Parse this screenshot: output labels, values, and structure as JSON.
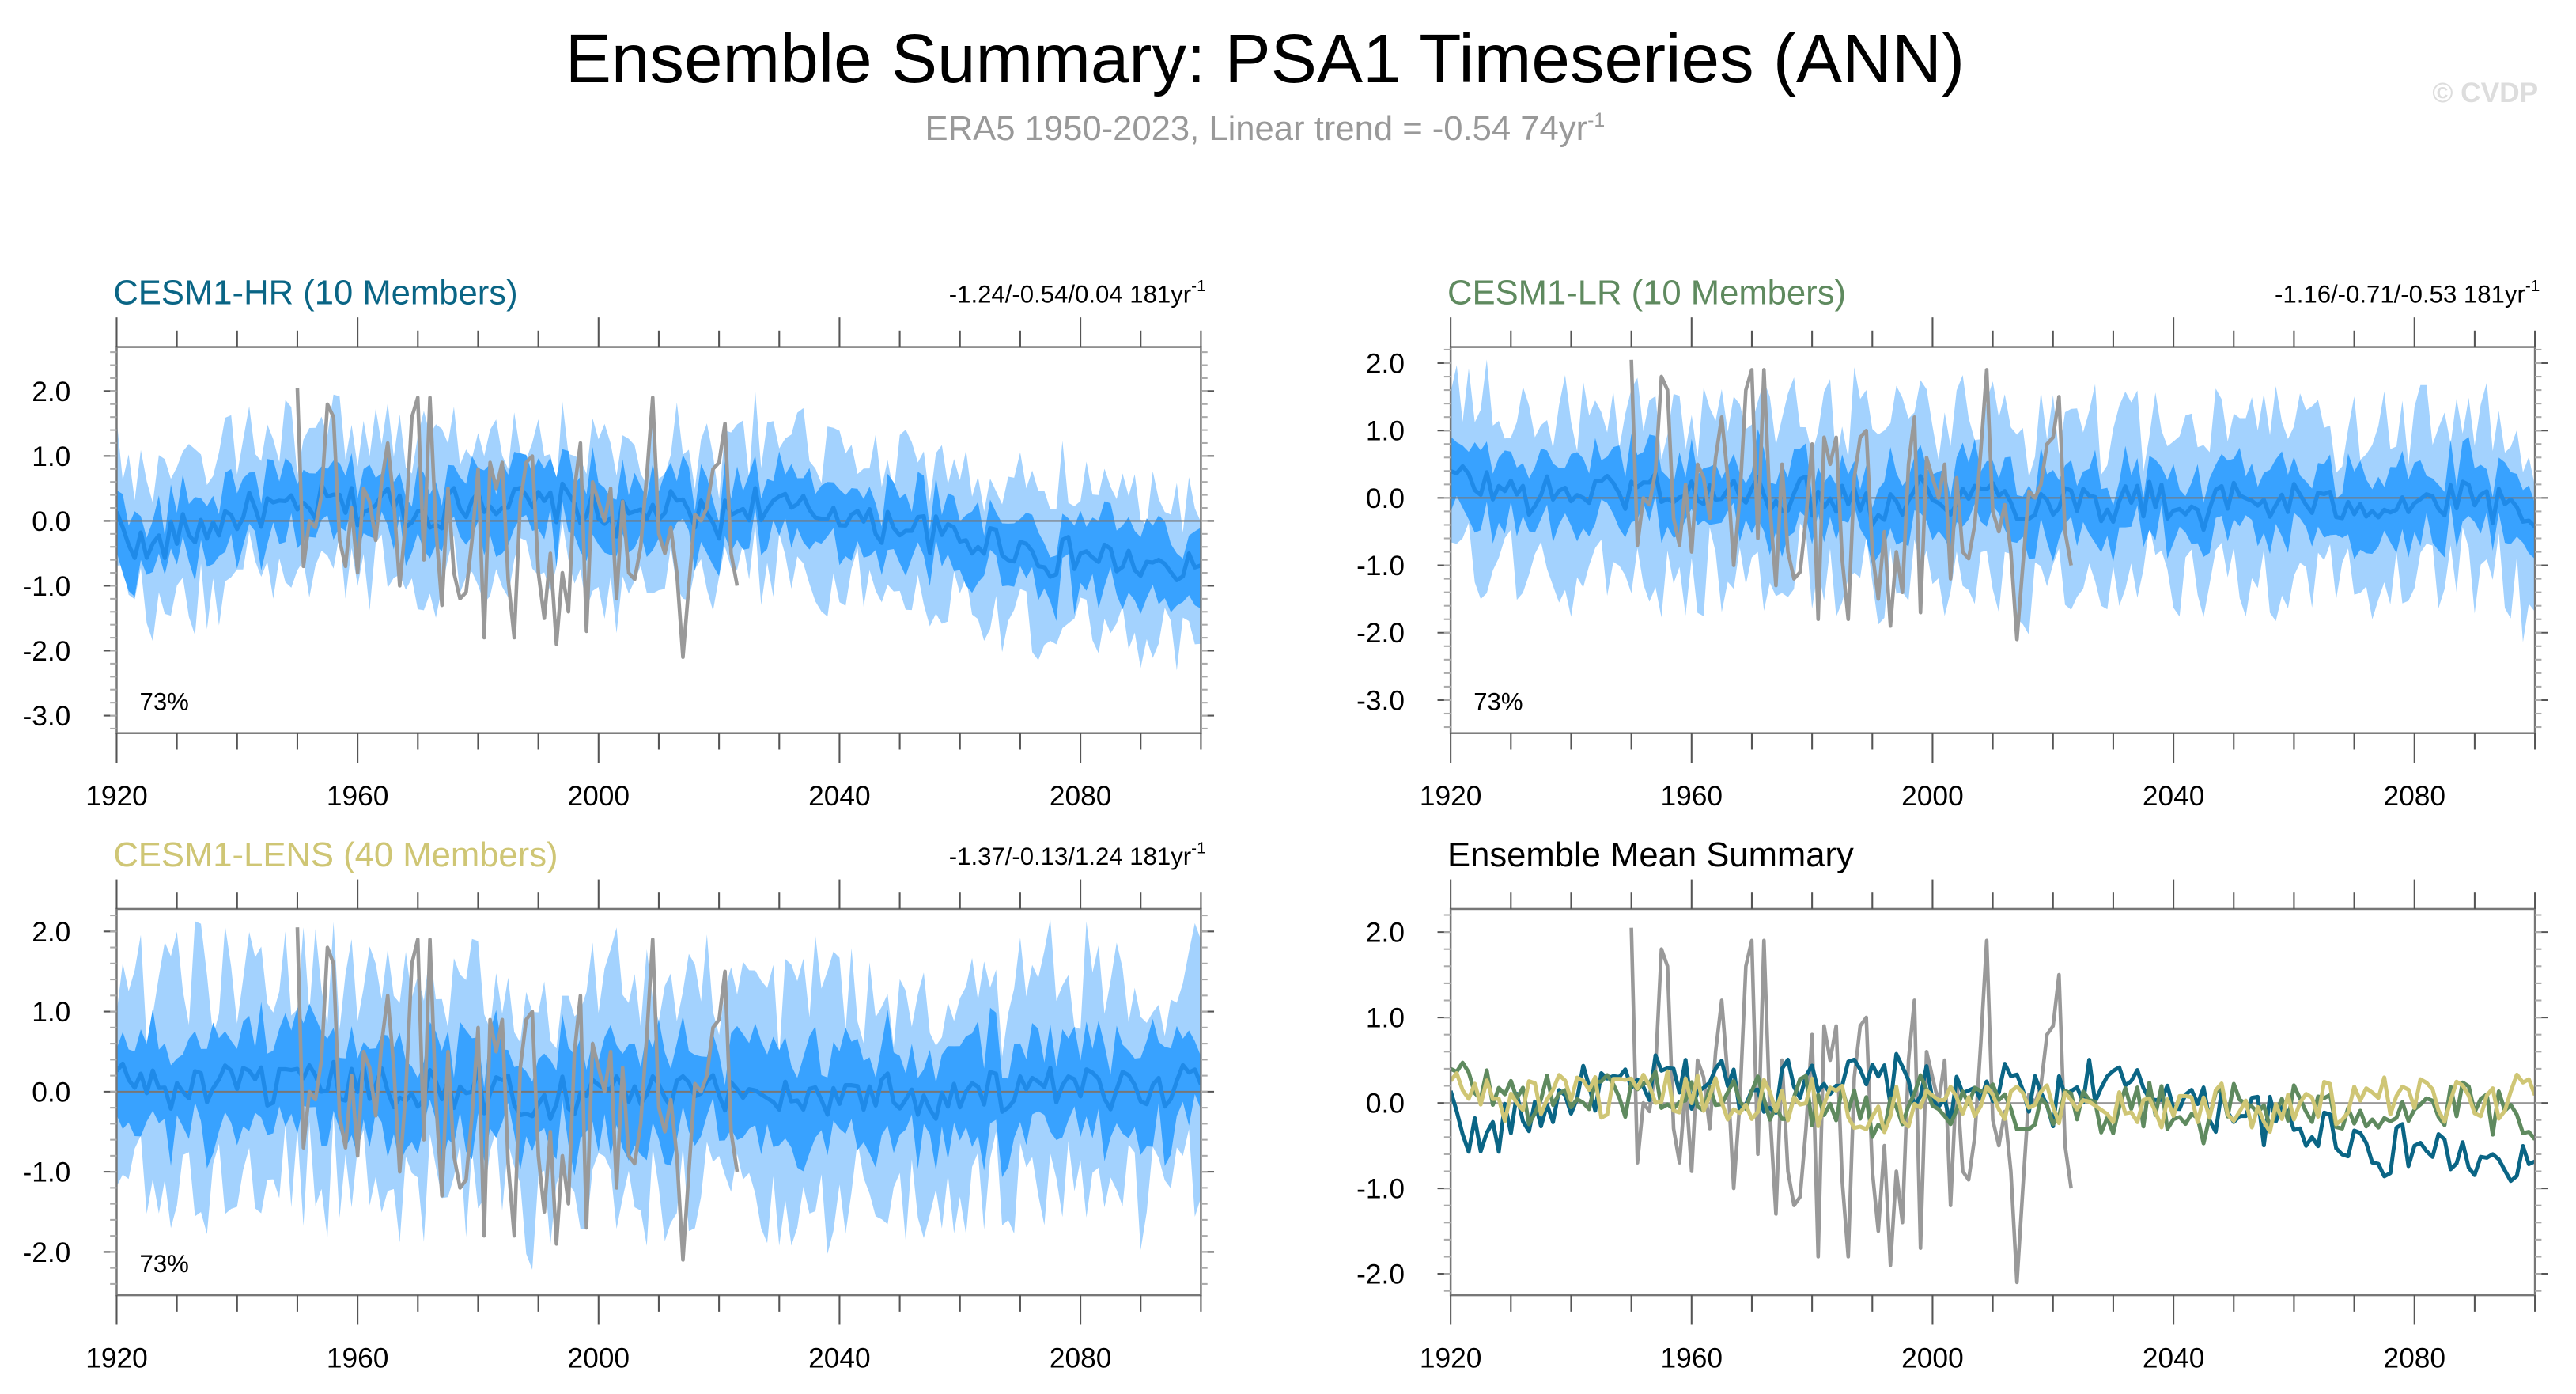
{
  "header": {
    "title": "Ensemble Summary: PSA1 Timeseries (ANN)",
    "subtitle": "ERA5 1950-2023, Linear trend = -0.54 74yr",
    "subtitle_sup": "-1",
    "watermark": "© CVDP"
  },
  "colors": {
    "hr": "#0a6585",
    "lr": "#5f8a5f",
    "lens": "#cfc675",
    "outer_band": "#a3d2fe",
    "inner_band": "#38a2ff",
    "mean_line": "#1f8ae8",
    "obs": "#999999"
  },
  "chart_data": [
    {
      "type": "area",
      "id": "hr",
      "title": "CESM1-HR (10 Members)",
      "trend": "-1.24/-0.54/0.04 181yr",
      "trend_sup": "-1",
      "percent_label": "73%",
      "x_start": 1920,
      "x_step": 5,
      "xlim": [
        1920,
        2100
      ],
      "xticks": [
        "1920",
        "1960",
        "2000",
        "2040",
        "2080"
      ],
      "ylim": [
        -3.27,
        2.68
      ],
      "yticks": [
        "2.0",
        "1.0",
        "0.0",
        "-1.0",
        "-2.0",
        "-3.0"
      ],
      "mean": [
        0.0,
        -0.5,
        -0.2,
        -0.1,
        0.1,
        0.2,
        0.1,
        0.3,
        0.2,
        0.3,
        0.1,
        0.2,
        0.4,
        0.3,
        0.2,
        0.3,
        0.1,
        0.0,
        0.2,
        0.1,
        0.0,
        0.3,
        0.2,
        0.1,
        0.2,
        -0.1,
        0.0,
        -0.2,
        -0.3,
        -0.3,
        -0.4,
        -0.6,
        -0.5,
        -0.6,
        -0.7,
        -0.8,
        -0.8
      ],
      "inner_spread": 0.6,
      "outer_spread": 1.3
    },
    {
      "type": "area",
      "id": "lr",
      "title": "CESM1-LR (10 Members)",
      "trend": "-1.16/-0.71/-0.53 181yr",
      "trend_sup": "-1",
      "percent_label": "73%",
      "x_start": 1920,
      "x_step": 5,
      "xlim": [
        1920,
        2100
      ],
      "xticks": [
        "1920",
        "1960",
        "2000",
        "2040",
        "2080"
      ],
      "ylim": [
        -3.49,
        2.24
      ],
      "yticks": [
        "2.0",
        "1.0",
        "0.0",
        "-1.0",
        "-2.0",
        "-3.0"
      ],
      "mean": [
        0.3,
        0.2,
        0.1,
        0.0,
        0.1,
        0.1,
        0.1,
        0.2,
        0.0,
        0.1,
        0.0,
        0.1,
        0.0,
        0.1,
        -0.1,
        0.0,
        0.1,
        0.0,
        0.1,
        -0.1,
        0.0,
        0.0,
        -0.1,
        0.0,
        -0.1,
        -0.2,
        0.0,
        -0.1,
        0.0,
        -0.2,
        0.0,
        -0.1,
        0.0,
        -0.1,
        0.0,
        -0.2,
        -0.6
      ],
      "inner_spread": 0.6,
      "outer_spread": 1.5
    },
    {
      "type": "area",
      "id": "lens",
      "title": "CESM1-LENS (40 Members)",
      "trend": "-1.37/-0.13/1.24 181yr",
      "trend_sup": "-1",
      "percent_label": "73%",
      "x_start": 1920,
      "x_step": 5,
      "xlim": [
        1920,
        2100
      ],
      "xticks": [
        "1920",
        "1960",
        "2000",
        "2040",
        "2080"
      ],
      "ylim": [
        -2.54,
        2.28
      ],
      "yticks": [
        "2.0",
        "1.0",
        "0.0",
        "-1.0",
        "-2.0"
      ],
      "mean": [
        0.2,
        0.1,
        0.0,
        0.1,
        0.0,
        0.1,
        0.0,
        0.1,
        0.1,
        0.0,
        0.1,
        0.0,
        0.0,
        0.0,
        -0.1,
        0.0,
        0.0,
        0.0,
        0.0,
        -0.1,
        0.0,
        0.0,
        0.0,
        -0.1,
        0.0,
        0.0,
        0.0,
        -0.1,
        0.0,
        0.0,
        0.0,
        0.0,
        0.0,
        0.0,
        0.1,
        0.1,
        0.1
      ],
      "inner_spread": 0.7,
      "outer_spread": 1.6
    },
    {
      "type": "line",
      "id": "summary",
      "title": "Ensemble Mean Summary",
      "xlim": [
        1920,
        2100
      ],
      "xticks": [
        "1920",
        "1960",
        "2000",
        "2040",
        "2080"
      ],
      "ylim": [
        -2.25,
        2.27
      ],
      "yticks": [
        "2.0",
        "1.0",
        "0.0",
        "-1.0",
        "-2.0"
      ],
      "series": [
        "hr",
        "lr",
        "lens"
      ]
    }
  ],
  "obs": {
    "name": "ERA5",
    "x_start": 1950,
    "values": [
      2.05,
      -0.7,
      0.0,
      -0.1,
      0.4,
      1.8,
      1.6,
      -0.3,
      -0.7,
      0.2,
      -0.8,
      0.5,
      0.3,
      -0.3,
      0.6,
      1.2,
      0.3,
      -1.0,
      0.0,
      1.6,
      1.9,
      -0.6,
      1.9,
      -0.1,
      -1.3,
      0.5,
      -0.8,
      -1.2,
      -1.1,
      -0.3,
      0.8,
      -1.8,
      0.9,
      0.5,
      0.9,
      -0.9,
      -1.8,
      0.3,
      0.9,
      1.0,
      -0.8,
      -1.5,
      -0.5,
      -1.9,
      -0.8,
      -1.4,
      0.5,
      1.2,
      -1.7,
      0.6,
      0.3,
      0.0,
      0.5,
      -1.2,
      0.3,
      -0.8,
      -0.9,
      -0.4,
      0.7,
      1.9,
      -0.2,
      -0.5,
      -0.1,
      -0.8,
      -2.1,
      -1.0,
      0.1,
      0.0,
      0.2,
      0.8,
      0.9,
      1.5,
      -0.5,
      -1.0
    ]
  }
}
